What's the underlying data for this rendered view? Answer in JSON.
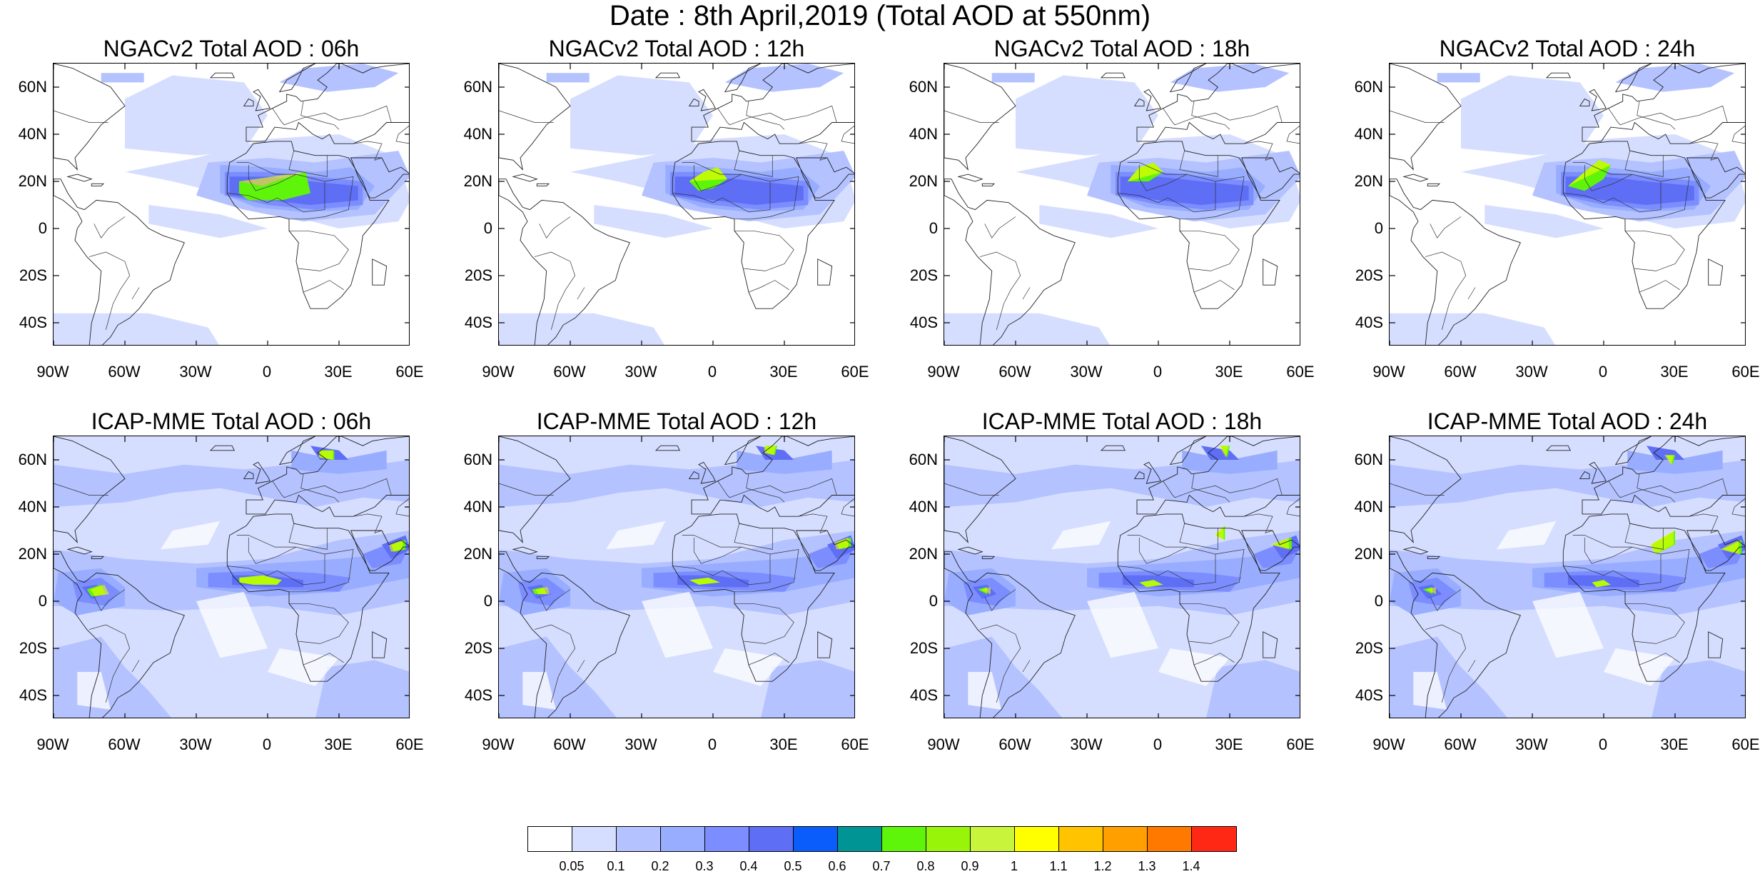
{
  "title": "Date : 8th April,2019 (Total AOD at 550nm)",
  "panels": [
    {
      "title": "NGACv2 Total AOD : 06h",
      "model": "ngac",
      "step": 0
    },
    {
      "title": "NGACv2 Total AOD : 12h",
      "model": "ngac",
      "step": 1
    },
    {
      "title": "NGACv2 Total AOD : 18h",
      "model": "ngac",
      "step": 2
    },
    {
      "title": "NGACv2 Total AOD : 24h",
      "model": "ngac",
      "step": 3
    },
    {
      "title": "ICAP-MME Total AOD : 06h",
      "model": "icap",
      "step": 0
    },
    {
      "title": "ICAP-MME Total AOD : 12h",
      "model": "icap",
      "step": 1
    },
    {
      "title": "ICAP-MME Total AOD : 18h",
      "model": "icap",
      "step": 2
    },
    {
      "title": "ICAP-MME Total AOD : 24h",
      "model": "icap",
      "step": 3
    }
  ],
  "lat_ticks": [
    "60N",
    "40N",
    "20N",
    "0",
    "20S",
    "40S"
  ],
  "lon_ticks": [
    "90W",
    "60W",
    "30W",
    "0",
    "30E",
    "60E"
  ],
  "colorbar": {
    "colors": [
      "#ffffff",
      "#d6deff",
      "#b4c2ff",
      "#98adff",
      "#7b8dff",
      "#5e6ef5",
      "#0a5dfa",
      "#009494",
      "#5ff50a",
      "#98f50a",
      "#c8f53c",
      "#ffff00",
      "#ffc300",
      "#ffa000",
      "#ff7800",
      "#ff2814"
    ],
    "labels": [
      "0.05",
      "0.1",
      "0.2",
      "0.3",
      "0.4",
      "0.5",
      "0.6",
      "0.7",
      "0.8",
      "0.9",
      "1",
      "1.1",
      "1.2",
      "1.3",
      "1.4"
    ]
  }
}
